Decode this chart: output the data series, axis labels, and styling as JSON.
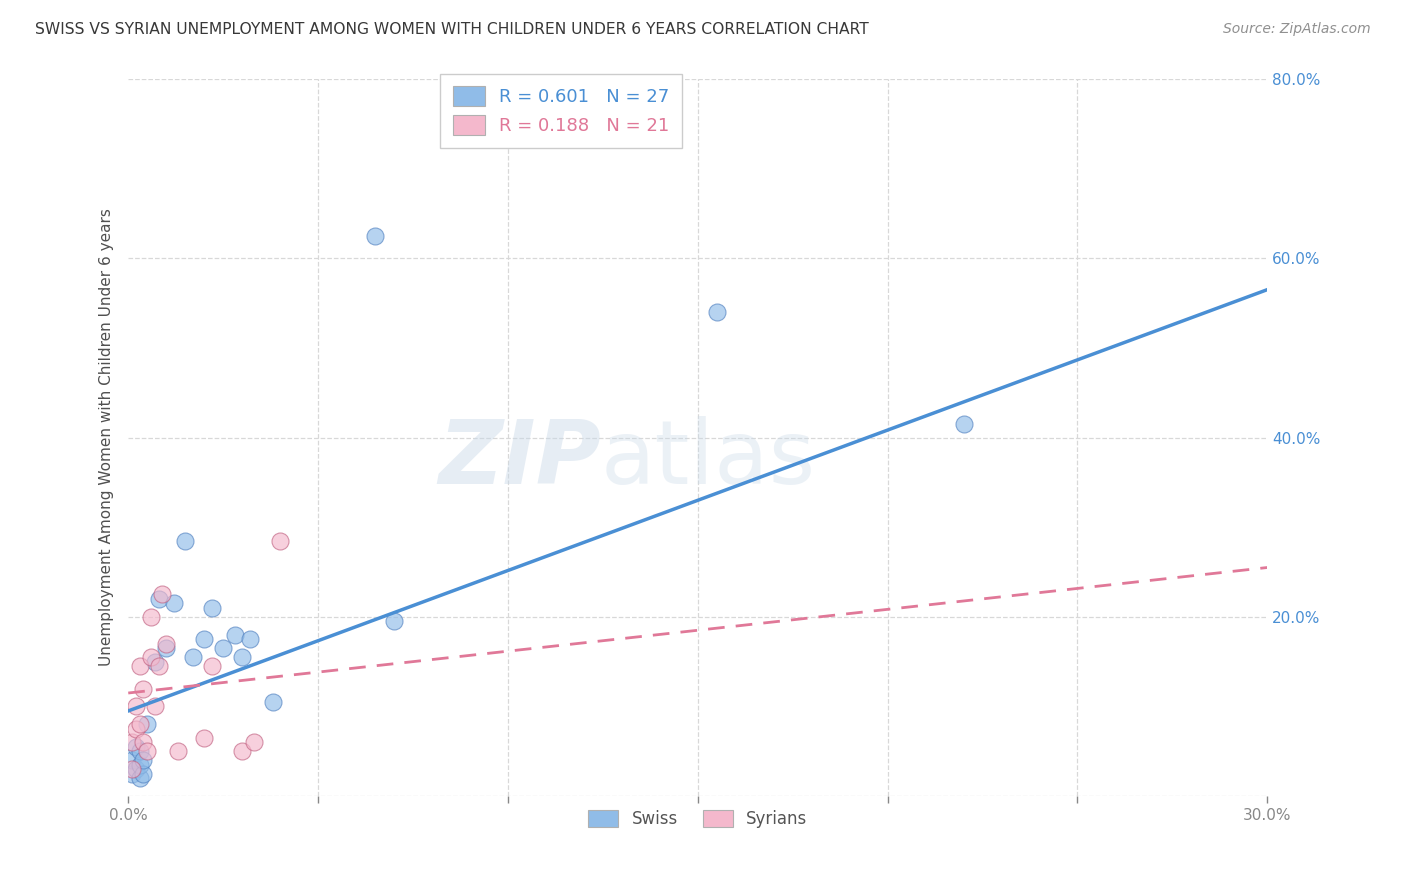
{
  "title": "SWISS VS SYRIAN UNEMPLOYMENT AMONG WOMEN WITH CHILDREN UNDER 6 YEARS CORRELATION CHART",
  "source": "Source: ZipAtlas.com",
  "ylabel": "Unemployment Among Women with Children Under 6 years",
  "xlim": [
    0.0,
    0.3
  ],
  "ylim": [
    0.0,
    0.8
  ],
  "blue_color": "#90bce8",
  "pink_color": "#f4b8cc",
  "blue_line_color": "#4a8fd4",
  "pink_line_color": "#e07898",
  "blue_edge_color": "#5080c0",
  "pink_edge_color": "#c06080",
  "grid_color": "#d8d8d8",
  "bg_color": "#ffffff",
  "title_color": "#383838",
  "right_tick_color": "#4a8fd4",
  "legend_top_labels": [
    "R = 0.601   N = 27",
    "R = 0.188   N = 21"
  ],
  "legend_bottom_labels": [
    "Swiss",
    "Syrians"
  ],
  "swiss_x": [
    0.001,
    0.001,
    0.002,
    0.002,
    0.003,
    0.003,
    0.003,
    0.004,
    0.004,
    0.005,
    0.007,
    0.008,
    0.01,
    0.012,
    0.015,
    0.017,
    0.02,
    0.022,
    0.025,
    0.028,
    0.03,
    0.032,
    0.038,
    0.065,
    0.07,
    0.155,
    0.22
  ],
  "swiss_y": [
    0.025,
    0.04,
    0.03,
    0.055,
    0.02,
    0.035,
    0.05,
    0.025,
    0.04,
    0.08,
    0.15,
    0.22,
    0.165,
    0.215,
    0.285,
    0.155,
    0.175,
    0.21,
    0.165,
    0.18,
    0.155,
    0.175,
    0.105,
    0.625,
    0.195,
    0.54,
    0.415
  ],
  "syrian_x": [
    0.001,
    0.001,
    0.002,
    0.002,
    0.003,
    0.003,
    0.004,
    0.004,
    0.005,
    0.006,
    0.006,
    0.007,
    0.008,
    0.009,
    0.01,
    0.013,
    0.02,
    0.022,
    0.03,
    0.033,
    0.04
  ],
  "syrian_y": [
    0.03,
    0.06,
    0.075,
    0.1,
    0.08,
    0.145,
    0.06,
    0.12,
    0.05,
    0.155,
    0.2,
    0.1,
    0.145,
    0.225,
    0.17,
    0.05,
    0.065,
    0.145,
    0.05,
    0.06,
    0.285
  ],
  "swiss_line_x0": 0.0,
  "swiss_line_y0": 0.095,
  "swiss_line_x1": 0.3,
  "swiss_line_y1": 0.565,
  "syrian_line_x0": 0.0,
  "syrian_line_y0": 0.115,
  "syrian_line_x1": 0.3,
  "syrian_line_y1": 0.255
}
